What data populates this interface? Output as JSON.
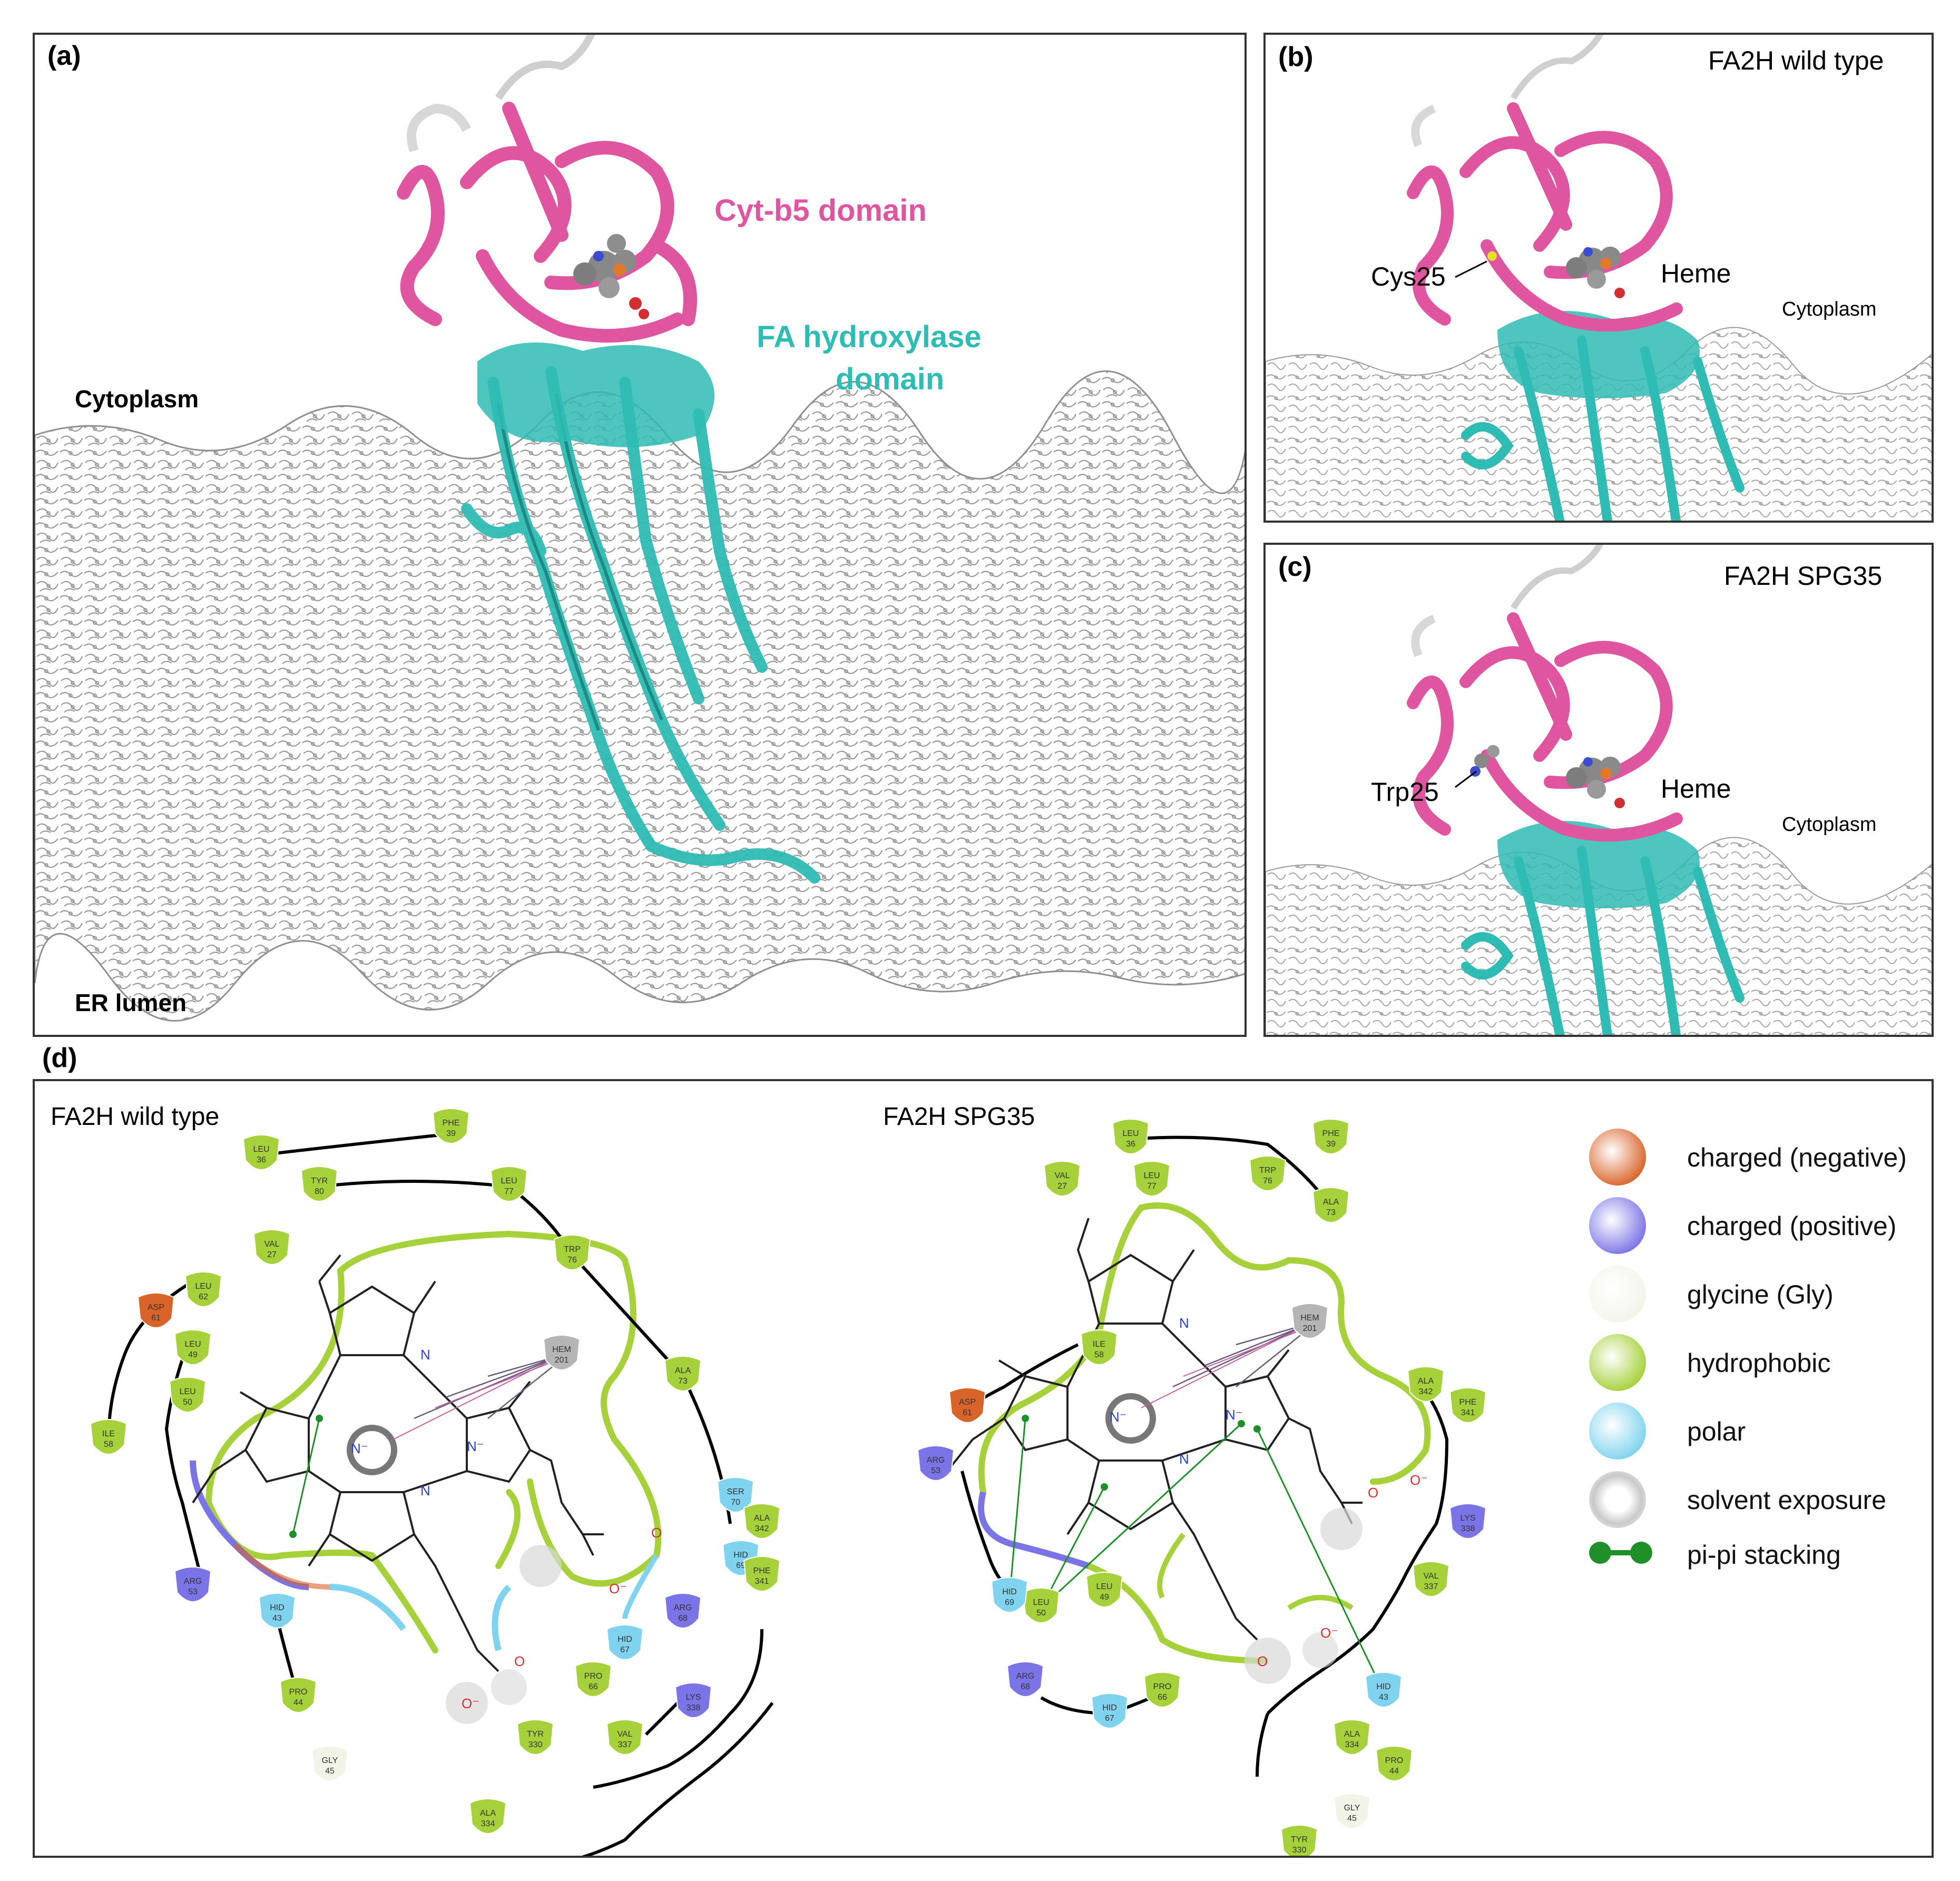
{
  "panel_a": {
    "label": "(a)",
    "cyt_b5": "Cyt-b5 domain",
    "fa_hyd_1": "FA hydroxylase",
    "fa_hyd_2": "domain",
    "cytoplasm": "Cytoplasm",
    "er_lumen": "ER lumen"
  },
  "panel_b": {
    "label": "(b)",
    "title": "FA2H wild type",
    "residue": "Cys25",
    "heme": "Heme",
    "cytoplasm": "Cytoplasm"
  },
  "panel_c": {
    "label": "(c)",
    "title": "FA2H SPG35",
    "residue": "Trp25",
    "heme": "Heme",
    "cytoplasm": "Cytoplasm"
  },
  "panel_d": {
    "label": "(d)",
    "wt_title": "FA2H wild type",
    "spg_title": "FA2H SPG35",
    "wt_residues": [
      {
        "res": "PHE",
        "num": "39",
        "type": "hydrophobic"
      },
      {
        "res": "LEU",
        "num": "36",
        "type": "hydrophobic"
      },
      {
        "res": "TYR",
        "num": "80",
        "type": "hydrophobic"
      },
      {
        "res": "LEU",
        "num": "77",
        "type": "hydrophobic"
      },
      {
        "res": "TRP",
        "num": "76",
        "type": "hydrophobic"
      },
      {
        "res": "VAL",
        "num": "27",
        "type": "hydrophobic"
      },
      {
        "res": "LEU",
        "num": "62",
        "type": "hydrophobic"
      },
      {
        "res": "ASP",
        "num": "61",
        "type": "negative"
      },
      {
        "res": "HEM",
        "num": "201",
        "type": "solvent"
      },
      {
        "res": "LEU",
        "num": "49",
        "type": "hydrophobic"
      },
      {
        "res": "ALA",
        "num": "73",
        "type": "hydrophobic"
      },
      {
        "res": "LEU",
        "num": "50",
        "type": "hydrophobic"
      },
      {
        "res": "ILE",
        "num": "58",
        "type": "hydrophobic"
      },
      {
        "res": "SER",
        "num": "70",
        "type": "polar"
      },
      {
        "res": "ALA",
        "num": "342",
        "type": "hydrophobic"
      },
      {
        "res": "HID",
        "num": "69",
        "type": "polar"
      },
      {
        "res": "PHE",
        "num": "341",
        "type": "hydrophobic"
      },
      {
        "res": "ARG",
        "num": "53",
        "type": "positive"
      },
      {
        "res": "HID",
        "num": "43",
        "type": "polar"
      },
      {
        "res": "ARG",
        "num": "68",
        "type": "positive"
      },
      {
        "res": "PRO",
        "num": "44",
        "type": "hydrophobic"
      },
      {
        "res": "HID",
        "num": "67",
        "type": "polar"
      },
      {
        "res": "GLY",
        "num": "45",
        "type": "glycine"
      },
      {
        "res": "PRO",
        "num": "66",
        "type": "hydrophobic"
      },
      {
        "res": "LYS",
        "num": "338",
        "type": "positive"
      },
      {
        "res": "TYR",
        "num": "330",
        "type": "hydrophobic"
      },
      {
        "res": "VAL",
        "num": "337",
        "type": "hydrophobic"
      },
      {
        "res": "ALA",
        "num": "334",
        "type": "hydrophobic"
      }
    ],
    "spg_residues": [
      {
        "res": "LEU",
        "num": "36",
        "type": "hydrophobic"
      },
      {
        "res": "PHE",
        "num": "39",
        "type": "hydrophobic"
      },
      {
        "res": "TRP",
        "num": "76",
        "type": "hydrophobic"
      },
      {
        "res": "VAL",
        "num": "27",
        "type": "hydrophobic"
      },
      {
        "res": "LEU",
        "num": "77",
        "type": "hydrophobic"
      },
      {
        "res": "ALA",
        "num": "73",
        "type": "hydrophobic"
      },
      {
        "res": "HEM",
        "num": "201",
        "type": "solvent"
      },
      {
        "res": "ILE",
        "num": "58",
        "type": "hydrophobic"
      },
      {
        "res": "ALA",
        "num": "342",
        "type": "hydrophobic"
      },
      {
        "res": "ASP",
        "num": "61",
        "type": "negative"
      },
      {
        "res": "PHE",
        "num": "341",
        "type": "hydrophobic"
      },
      {
        "res": "ARG",
        "num": "53",
        "type": "positive"
      },
      {
        "res": "LYS",
        "num": "338",
        "type": "positive"
      },
      {
        "res": "LEU",
        "num": "49",
        "type": "hydrophobic"
      },
      {
        "res": "LEU",
        "num": "50",
        "type": "hydrophobic"
      },
      {
        "res": "VAL",
        "num": "337",
        "type": "hydrophobic"
      },
      {
        "res": "HID",
        "num": "69",
        "type": "polar"
      },
      {
        "res": "ARG",
        "num": "68",
        "type": "positive"
      },
      {
        "res": "HID",
        "num": "67",
        "type": "polar"
      },
      {
        "res": "PRO",
        "num": "66",
        "type": "hydrophobic"
      },
      {
        "res": "HID",
        "num": "43",
        "type": "polar"
      },
      {
        "res": "ALA",
        "num": "334",
        "type": "hydrophobic"
      },
      {
        "res": "PRO",
        "num": "44",
        "type": "hydrophobic"
      },
      {
        "res": "GLY",
        "num": "45",
        "type": "glycine"
      },
      {
        "res": "TYR",
        "num": "330",
        "type": "hydrophobic"
      }
    ],
    "legend": [
      {
        "label": "charged (negative)",
        "type": "negative"
      },
      {
        "label": "charged (positive)",
        "type": "positive"
      },
      {
        "label": "glycine (Gly)",
        "type": "glycine"
      },
      {
        "label": "hydrophobic",
        "type": "hydrophobic"
      },
      {
        "label": "polar",
        "type": "polar"
      },
      {
        "label": "solvent exposure",
        "type": "solvent"
      },
      {
        "label": "pi-pi stacking",
        "type": "pipi"
      }
    ],
    "atoms": {
      "n": "N",
      "n_minus": "N⁻",
      "o": "O",
      "o_minus": "O⁻"
    }
  },
  "colors": {
    "cyt_b5": "#e0559f",
    "fa_hydroxylase": "#2fbcb4",
    "membrane": "#a8a8a8",
    "negative": "#d9642a",
    "positive": "#7b74e6",
    "glycine": "#f3f4e8",
    "hydrophobic": "#a6d13a",
    "polar": "#7fd3ef",
    "solvent": "#b5b5b5",
    "pipi": "#1f8f2a"
  }
}
